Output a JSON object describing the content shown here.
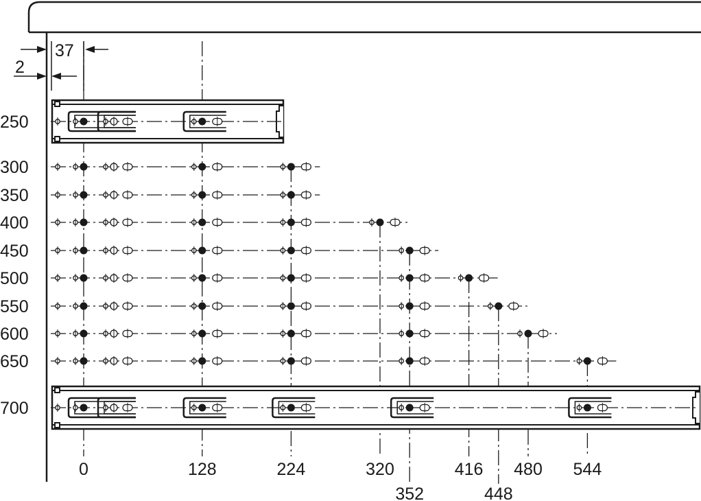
{
  "dimensions": {
    "offset_top": "37",
    "offset_side": "2"
  },
  "rows": [
    {
      "label": "250",
      "value": 250,
      "positions": [
        0,
        128
      ],
      "rail": true
    },
    {
      "label": "300",
      "value": 300,
      "positions": [
        0,
        128,
        224
      ]
    },
    {
      "label": "350",
      "value": 350,
      "positions": [
        0,
        128,
        224
      ]
    },
    {
      "label": "400",
      "value": 400,
      "positions": [
        0,
        128,
        224,
        320
      ]
    },
    {
      "label": "450",
      "value": 450,
      "positions": [
        0,
        128,
        224,
        352
      ]
    },
    {
      "label": "500",
      "value": 500,
      "positions": [
        0,
        128,
        224,
        352,
        416
      ]
    },
    {
      "label": "550",
      "value": 550,
      "positions": [
        0,
        128,
        224,
        352,
        448
      ]
    },
    {
      "label": "600",
      "value": 600,
      "positions": [
        0,
        128,
        224,
        352,
        480
      ]
    },
    {
      "label": "650",
      "value": 650,
      "positions": [
        0,
        128,
        224,
        352,
        544
      ]
    },
    {
      "label": "700",
      "value": 700,
      "positions": [
        0,
        128,
        224,
        352,
        544
      ],
      "rail": true
    }
  ],
  "x_labels": [
    {
      "label": "0",
      "value": 0,
      "level": 0
    },
    {
      "label": "128",
      "value": 128,
      "level": 0
    },
    {
      "label": "224",
      "value": 224,
      "level": 0
    },
    {
      "label": "320",
      "value": 320,
      "level": 0
    },
    {
      "label": "352",
      "value": 352,
      "level": 1
    },
    {
      "label": "416",
      "value": 416,
      "level": 0
    },
    {
      "label": "448",
      "value": 448,
      "level": 1
    },
    {
      "label": "480",
      "value": 480,
      "level": 0
    },
    {
      "label": "544",
      "value": 544,
      "level": 0
    }
  ],
  "colors": {
    "ink": "#1a1a1a",
    "background": "#ffffff"
  }
}
